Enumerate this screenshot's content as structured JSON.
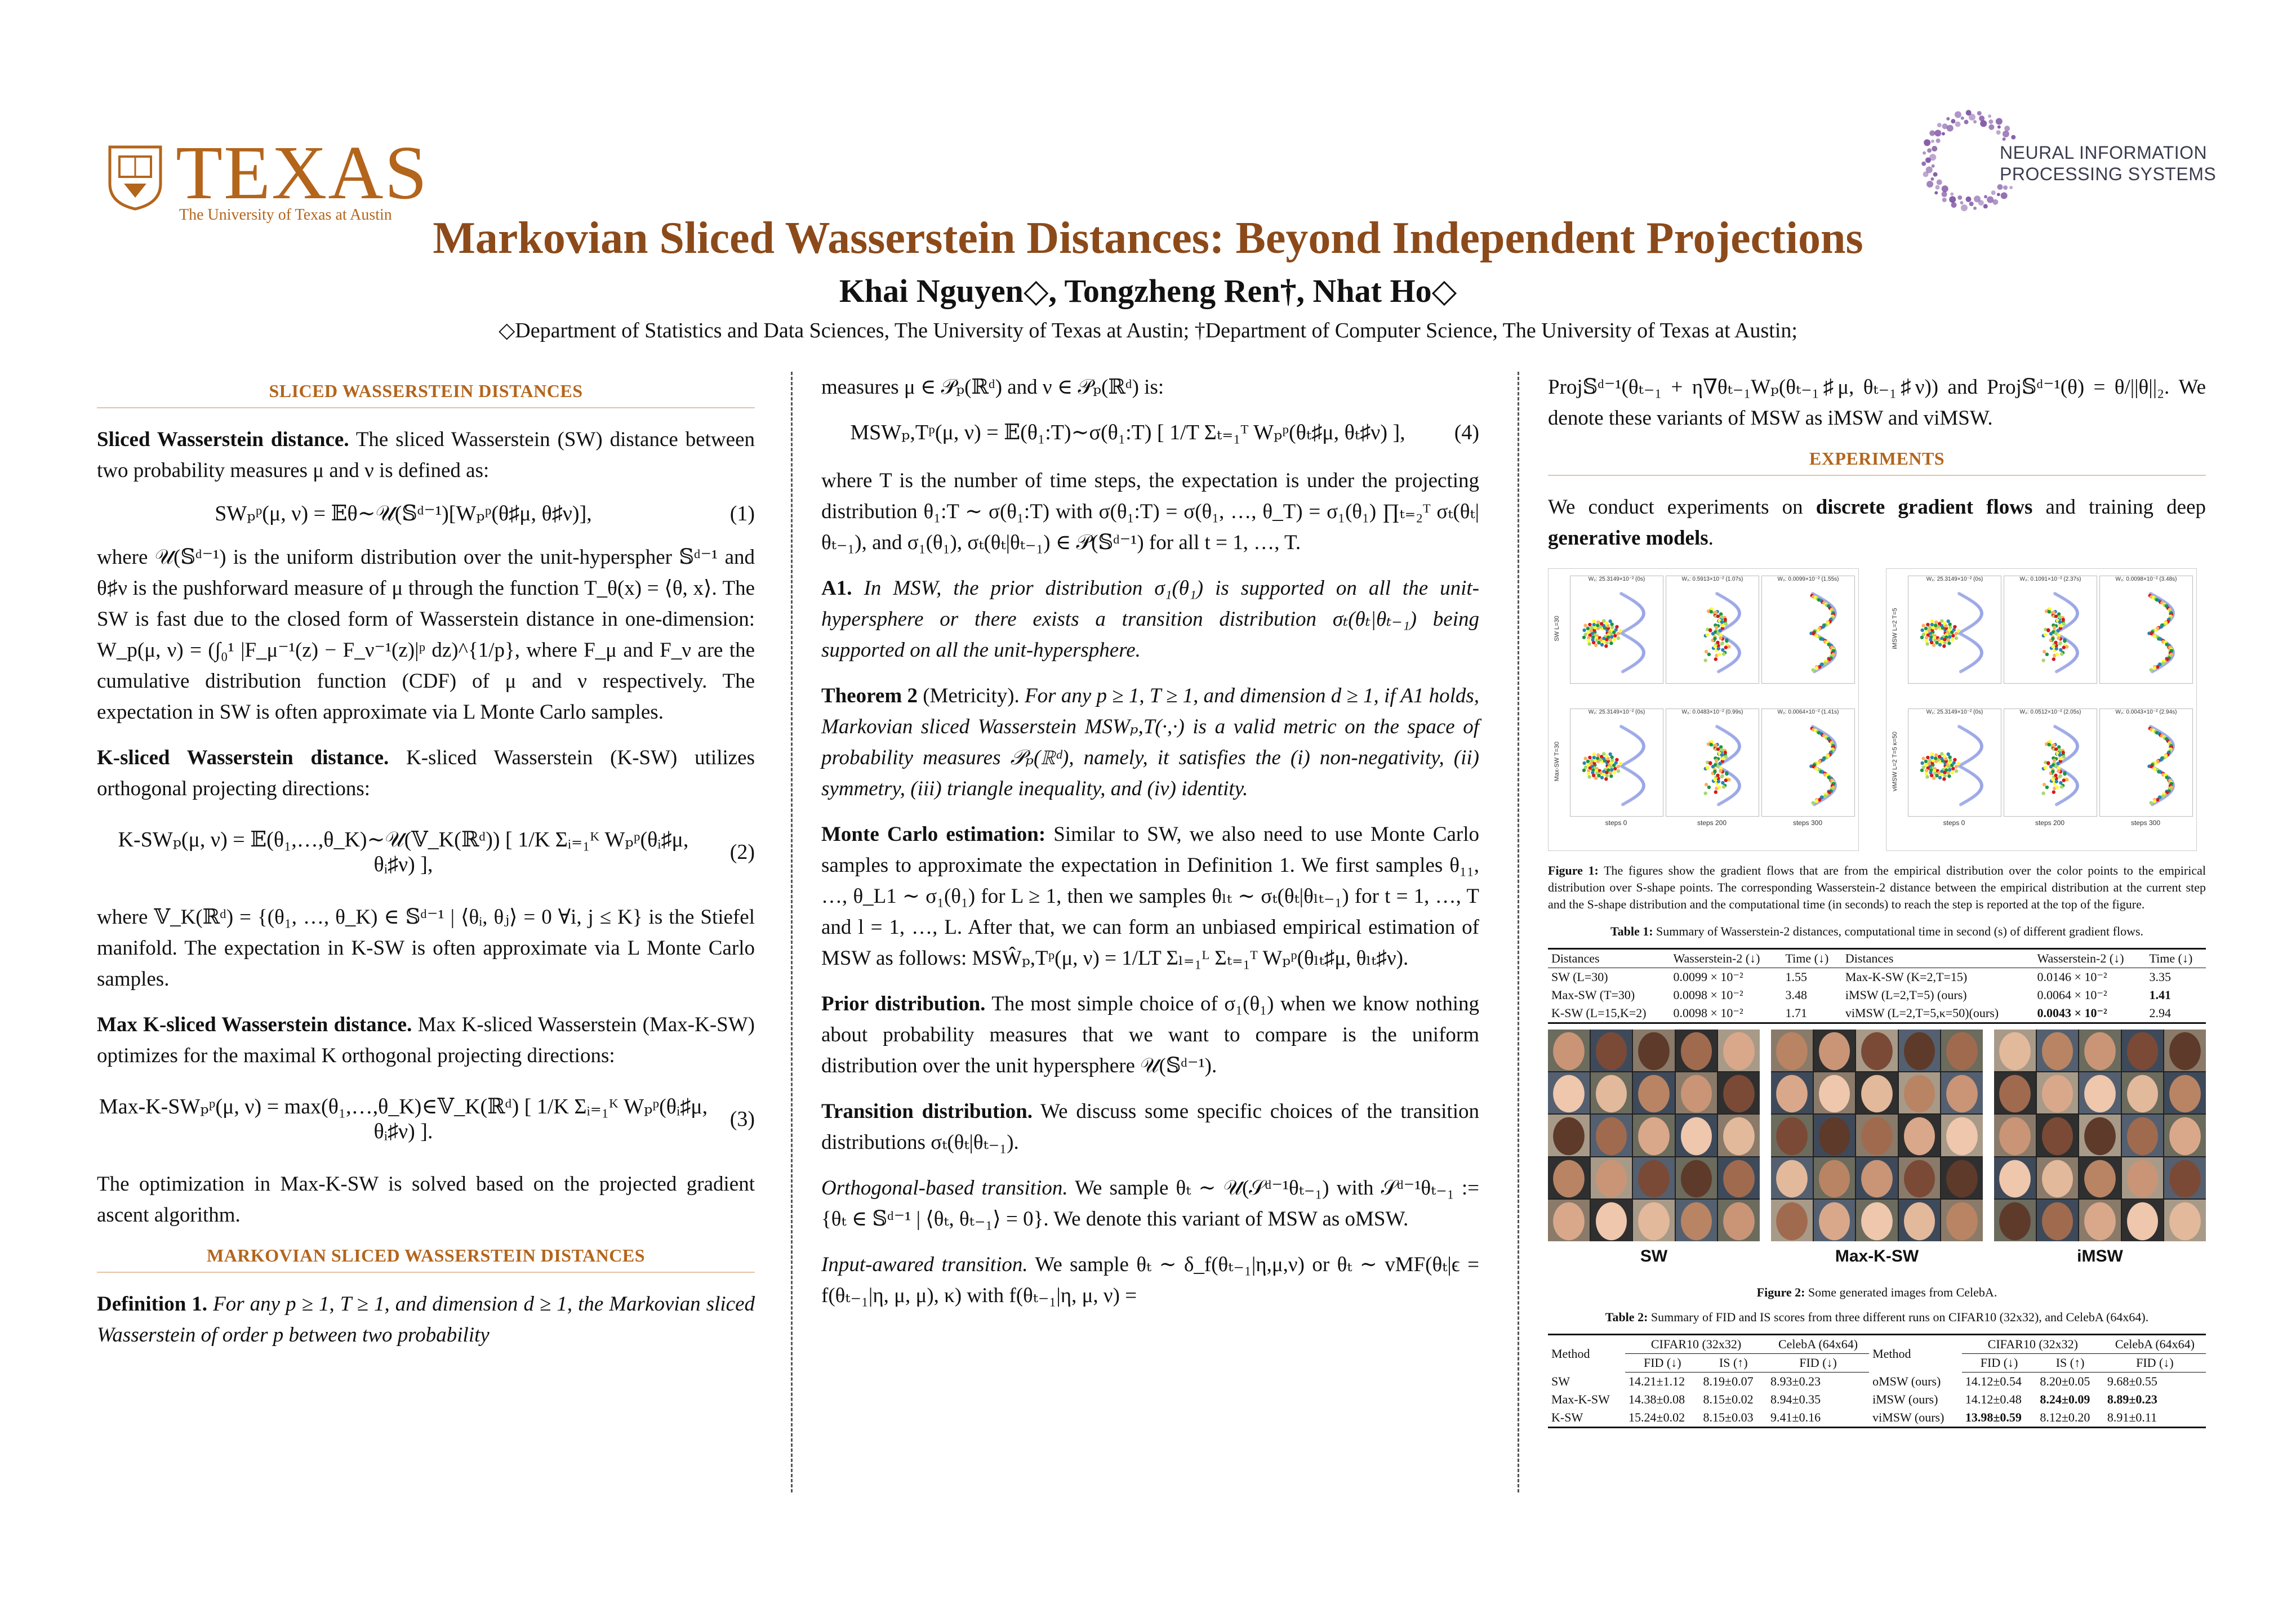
{
  "header": {
    "logo_word": "TEXAS",
    "logo_sub": "The University of Texas at Austin",
    "neurips_line1": "NEURAL INFORMATION",
    "neurips_line2": "PROCESSING SYSTEMS",
    "title": "Markovian Sliced Wasserstein Distances: Beyond Independent Projections",
    "authors": "Khai Nguyen◇, Tongzheng Ren†, Nhat Ho◇",
    "affiliations": "◇Department of Statistics and Data Sciences, The University of Texas at Austin; †Department of Computer Science, The University of Texas at Austin;"
  },
  "col1": {
    "sec1": "SLICED WASSERSTEIN DISTANCES",
    "sw_head": "Sliced Wasserstein distance.",
    "sw_text": "The sliced Wasserstein (SW) distance between two probability measures μ and ν is defined as:",
    "eq1": "SWₚᵖ(μ, ν) = 𝔼θ∼𝒰(𝕊ᵈ⁻¹)[Wₚᵖ(θ♯μ, θ♯ν)],",
    "eq1_num": "(1)",
    "sw_after": "where 𝒰(𝕊ᵈ⁻¹) is the uniform distribution over the unit-hyperspher 𝕊ᵈ⁻¹ and θ♯ν is the pushforward measure of μ through the function T_θ(x) = ⟨θ, x⟩. The SW is fast due to the closed form of Wasserstein distance in one-dimension: W_p(μ, ν) = (∫₀¹ |F_μ⁻¹(z) − F_ν⁻¹(z)|ᵖ dz)^{1/p}, where F_μ and F_ν are the cumulative distribution function (CDF) of μ and ν respectively. The expectation in SW is often approximate via L Monte Carlo samples.",
    "ksw_head": "K-sliced Wasserstein distance.",
    "ksw_text": "K-sliced Wasserstein (K-SW) utilizes orthogonal projecting directions:",
    "eq2": "K-SWₚ(μ, ν) = 𝔼(θ₁,…,θ_K)∼𝒰(𝕍_K(ℝᵈ)) [ 1/K Σᵢ₌₁ᴷ Wₚᵖ(θᵢ♯μ, θᵢ♯ν) ],",
    "eq2_num": "(2)",
    "ksw_after": "where 𝕍_K(ℝᵈ) = {(θ₁, …, θ_K) ∈ 𝕊ᵈ⁻¹ | ⟨θᵢ, θⱼ⟩ = 0 ∀i, j ≤ K} is the Stiefel manifold. The expectation in K-SW is often approximate via L Monte Carlo samples.",
    "mksw_head": "Max K-sliced Wasserstein distance.",
    "mksw_text": "Max K-sliced Wasserstein (Max-K-SW) optimizes for the maximal K orthogonal projecting directions:",
    "eq3": "Max-K-SWₚᵖ(μ, ν) = max(θ₁,…,θ_K)∈𝕍_K(ℝᵈ) [ 1/K Σᵢ₌₁ᴷ Wₚᵖ(θᵢ♯μ, θᵢ♯ν) ].",
    "eq3_num": "(3)",
    "mksw_after": "The optimization in Max-K-SW is solved based on the projected gradient ascent algorithm.",
    "sec2": "MARKOVIAN SLICED WASSERSTEIN DISTANCES",
    "def_head": "Definition 1.",
    "def_text": "For any p ≥ 1, T ≥ 1, and dimension d ≥ 1, the Markovian sliced Wasserstein of order p between two probability"
  },
  "col2": {
    "cont": "measures μ ∈ 𝒫ₚ(ℝᵈ) and ν ∈ 𝒫ₚ(ℝᵈ) is:",
    "eq4": "MSWₚ,Tᵖ(μ, ν) = 𝔼(θ₁:T)∼σ(θ₁:T) [ 1/T Σₜ₌₁ᵀ Wₚᵖ(θₜ♯μ, θₜ♯ν) ],",
    "eq4_num": "(4)",
    "after4": "where T is the number of time steps, the expectation is under the projecting distribution θ₁:T ∼ σ(θ₁:T) with σ(θ₁:T) = σ(θ₁, …, θ_T) = σ₁(θ₁) ∏ₜ₌₂ᵀ σₜ(θₜ|θₜ₋₁), and σ₁(θ₁), σₜ(θₜ|θₜ₋₁) ∈ 𝒫(𝕊ᵈ⁻¹) for all t = 1, …, T.",
    "a1_head": "A1.",
    "a1_text": "In MSW, the prior distribution σ₁(θ₁) is supported on all the unit-hypersphere or there exists a transition distribution σₜ(θₜ|θₜ₋₁) being supported on all the unit-hypersphere.",
    "thm_head": "Theorem 2",
    "thm_paren": "(Metricity).",
    "thm_text": "For any p ≥ 1, T ≥ 1, and dimension d ≥ 1, if A1 holds, Markovian sliced Wasserstein MSWₚ,T(·,·) is a valid metric on the space of probability measures 𝒫ₚ(ℝᵈ), namely, it satisfies the (i) non-negativity, (ii) symmetry, (iii) triangle inequality, and (iv) identity.",
    "mc_head": "Monte Carlo estimation:",
    "mc_text": "Similar to SW, we also need to use Monte Carlo samples to approximate the expectation in Definition 1. We first samples θ₁₁, …, θ_L1 ∼ σ₁(θ₁) for L ≥ 1, then we samples θₗₜ ∼ σₜ(θₜ|θₗₜ₋₁) for t = 1, …, T and l = 1, …, L. After that, we can form an unbiased empirical estimation of MSW as follows: MSŴₚ,Tᵖ(μ, ν) = 1/LT Σₗ₌₁ᴸ Σₜ₌₁ᵀ Wₚᵖ(θₗₜ♯μ, θₗₜ♯ν).",
    "prior_head": "Prior distribution.",
    "prior_text": "The most simple choice of σ₁(θ₁) when we know nothing about probability measures that we want to compare is the uniform distribution over the unit hypersphere 𝒰(𝕊ᵈ⁻¹).",
    "trans_head": "Transition distribution.",
    "trans_text": "We discuss some specific choices of the transition distributions σₜ(θₜ|θₜ₋₁).",
    "orth_head": "Orthogonal-based transition.",
    "orth_text": "We sample θₜ ∼ 𝒰(𝒮ᵈ⁻¹θₜ₋₁) with 𝒮ᵈ⁻¹θₜ₋₁ := {θₜ ∈ 𝕊ᵈ⁻¹ | ⟨θₜ, θₜ₋₁⟩ = 0}. We denote this variant of MSW as oMSW.",
    "input_head": "Input-awared transition.",
    "input_text": "We sample θₜ ∼ δ_f(θₜ₋₁|η,μ,ν) or θₜ ∼ vMF(θₜ|ϵ = f(θₜ₋₁|η, μ, μ), κ) with f(θₜ₋₁|η, μ, ν) ="
  },
  "col3": {
    "cont": "Proj𝕊ᵈ⁻¹(θₜ₋₁ + η∇θₜ₋₁Wₚ(θₜ₋₁♯μ, θₜ₋₁♯ν)) and Proj𝕊ᵈ⁻¹(θ) = θ/||θ||₂. We denote these variants of MSW as iMSW and viMSW.",
    "sec3": "EXPERIMENTS",
    "exp_text_a": "We conduct experiments on ",
    "exp_bold1": "discrete gradient flows",
    "exp_text_b": " and training deep ",
    "exp_bold2": "generative models",
    "exp_text_c": ".",
    "fig1_titles": [
      "W₂: 25.3149×10⁻² (0s)",
      "W₂: 0.5913×10⁻² (1.07s)",
      "W₂: 0.0099×10⁻² (1.55s)",
      "W₂: 25.3149×10⁻² (0s)",
      "W₂: 0.1091×10⁻² (2.37s)",
      "W₂: 0.0098×10⁻² (3.48s)",
      "W₂: 25.3149×10⁻² (0s)",
      "W₂: 0.0483×10⁻² (0.99s)",
      "W₂: 0.0064×10⁻² (1.41s)",
      "W₂: 25.3149×10⁻² (0s)",
      "W₂: 0.0512×10⁻² (2.05s)",
      "W₂: 0.0043×10⁻² (2.94s)"
    ],
    "fig1_rowlabels": [
      "SW L=30",
      "Max-SW T=30",
      "iMSW L=2 T=5",
      "viMSW L=2 T=5 κ=50"
    ],
    "fig1_steps": [
      "steps 0",
      "steps 200",
      "steps 300",
      "steps 0",
      "steps 200",
      "steps 300"
    ],
    "fig1_cap_head": "Figure 1:",
    "fig1_cap": "The figures show the gradient flows that are from the empirical distribution over the color points to the empirical distribution over S-shape points. The corresponding Wasserstein-2 distance between the empirical distribution at the current step and the S-shape distribution and the computational time (in seconds) to reach the step is reported at the top of the figure.",
    "tab1_cap_head": "Table 1:",
    "tab1_cap": "Summary of Wasserstein-2 distances, computational time in second (s) of different gradient flows.",
    "tab1_head": [
      "Distances",
      "Wasserstein-2 (↓)",
      "Time (↓)",
      "Distances",
      "Wasserstein-2 (↓)",
      "Time (↓)"
    ],
    "tab1_rows": [
      [
        "SW (L=30)",
        "0.0099 × 10⁻²",
        "1.55",
        "Max-K-SW (K=2,T=15)",
        "0.0146 × 10⁻²",
        "3.35"
      ],
      [
        "Max-SW (T=30)",
        "0.0098 × 10⁻²",
        "3.48",
        "iMSW (L=2,T=5) (ours)",
        "0.0064 × 10⁻²",
        "1.41"
      ],
      [
        "K-SW (L=15,K=2)",
        "0.0098 × 10⁻²",
        "1.71",
        "viMSW (L=2,T=5,κ=50)(ours)",
        "0.0043 × 10⁻²",
        "2.94"
      ]
    ],
    "face_labels": [
      "SW",
      "Max-K-SW",
      "iMSW"
    ],
    "fig2_cap_head": "Figure 2:",
    "fig2_cap": "Some generated images from CelebA.",
    "tab2_cap_head": "Table 2:",
    "tab2_cap": "Summary of FID and IS scores from three different runs on CIFAR10 (32x32), and CelebA (64x64).",
    "tab2_group": [
      "Method",
      "CIFAR10 (32x32)",
      "CelebA (64x64)",
      "Method",
      "CIFAR10 (32x32)",
      "CelebA (64x64)"
    ],
    "tab2_sub": [
      "FID (↓)",
      "IS (↑)",
      "FID (↓)",
      "FID (↓)",
      "IS (↑)",
      "FID (↓)"
    ],
    "tab2_rows": [
      [
        "SW",
        "14.21±1.12",
        "8.19±0.07",
        "8.93±0.23",
        "oMSW (ours)",
        "14.12±0.54",
        "8.20±0.05",
        "9.68±0.55"
      ],
      [
        "Max-K-SW",
        "14.38±0.08",
        "8.15±0.02",
        "8.94±0.35",
        "iMSW (ours)",
        "14.12±0.48",
        "8.24±0.09",
        "8.89±0.23"
      ],
      [
        "K-SW",
        "15.24±0.02",
        "8.15±0.03",
        "9.41±0.16",
        "viMSW (ours)",
        "13.98±0.59",
        "8.12±0.20",
        "8.91±0.11"
      ]
    ]
  },
  "colors": {
    "accent": "#b3651c",
    "title": "#8c4a1a",
    "neurips": "#7b4fa0"
  }
}
